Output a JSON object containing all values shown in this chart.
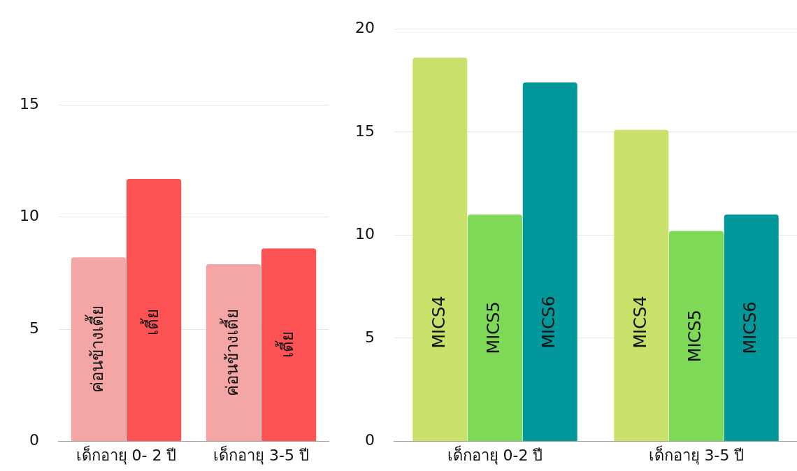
{
  "chart_data": [
    {
      "type": "bar",
      "categories": [
        "เด็กอายุ 0- 2 ปี",
        "เด็กอายุ 3-5 ปี"
      ],
      "series": [
        {
          "name": "ค่อนข้างเตี้ย",
          "color": "#f4a6a6",
          "values": [
            8.2,
            7.9
          ]
        },
        {
          "name": "เตี้ย",
          "color": "#fd5355",
          "values": [
            11.7,
            8.6
          ]
        }
      ],
      "ylim": [
        0,
        15
      ],
      "yticks": [
        0,
        5,
        10,
        15
      ],
      "grid": "y",
      "legend": false
    },
    {
      "type": "bar",
      "categories": [
        "เด็กอายุ 0-2 ปี",
        "เด็กอายุ 3-5 ปี"
      ],
      "series": [
        {
          "name": "MICS4",
          "color": "#c9e06a",
          "values": [
            18.6,
            15.1
          ]
        },
        {
          "name": "MICS5",
          "color": "#7ed957",
          "values": [
            11.0,
            10.2
          ]
        },
        {
          "name": "MICS6",
          "color": "#00989a",
          "values": [
            17.4,
            11.0
          ]
        }
      ],
      "ylim": [
        0,
        20
      ],
      "yticks": [
        0,
        5,
        10,
        15,
        20
      ],
      "grid": "y",
      "legend": false
    }
  ]
}
